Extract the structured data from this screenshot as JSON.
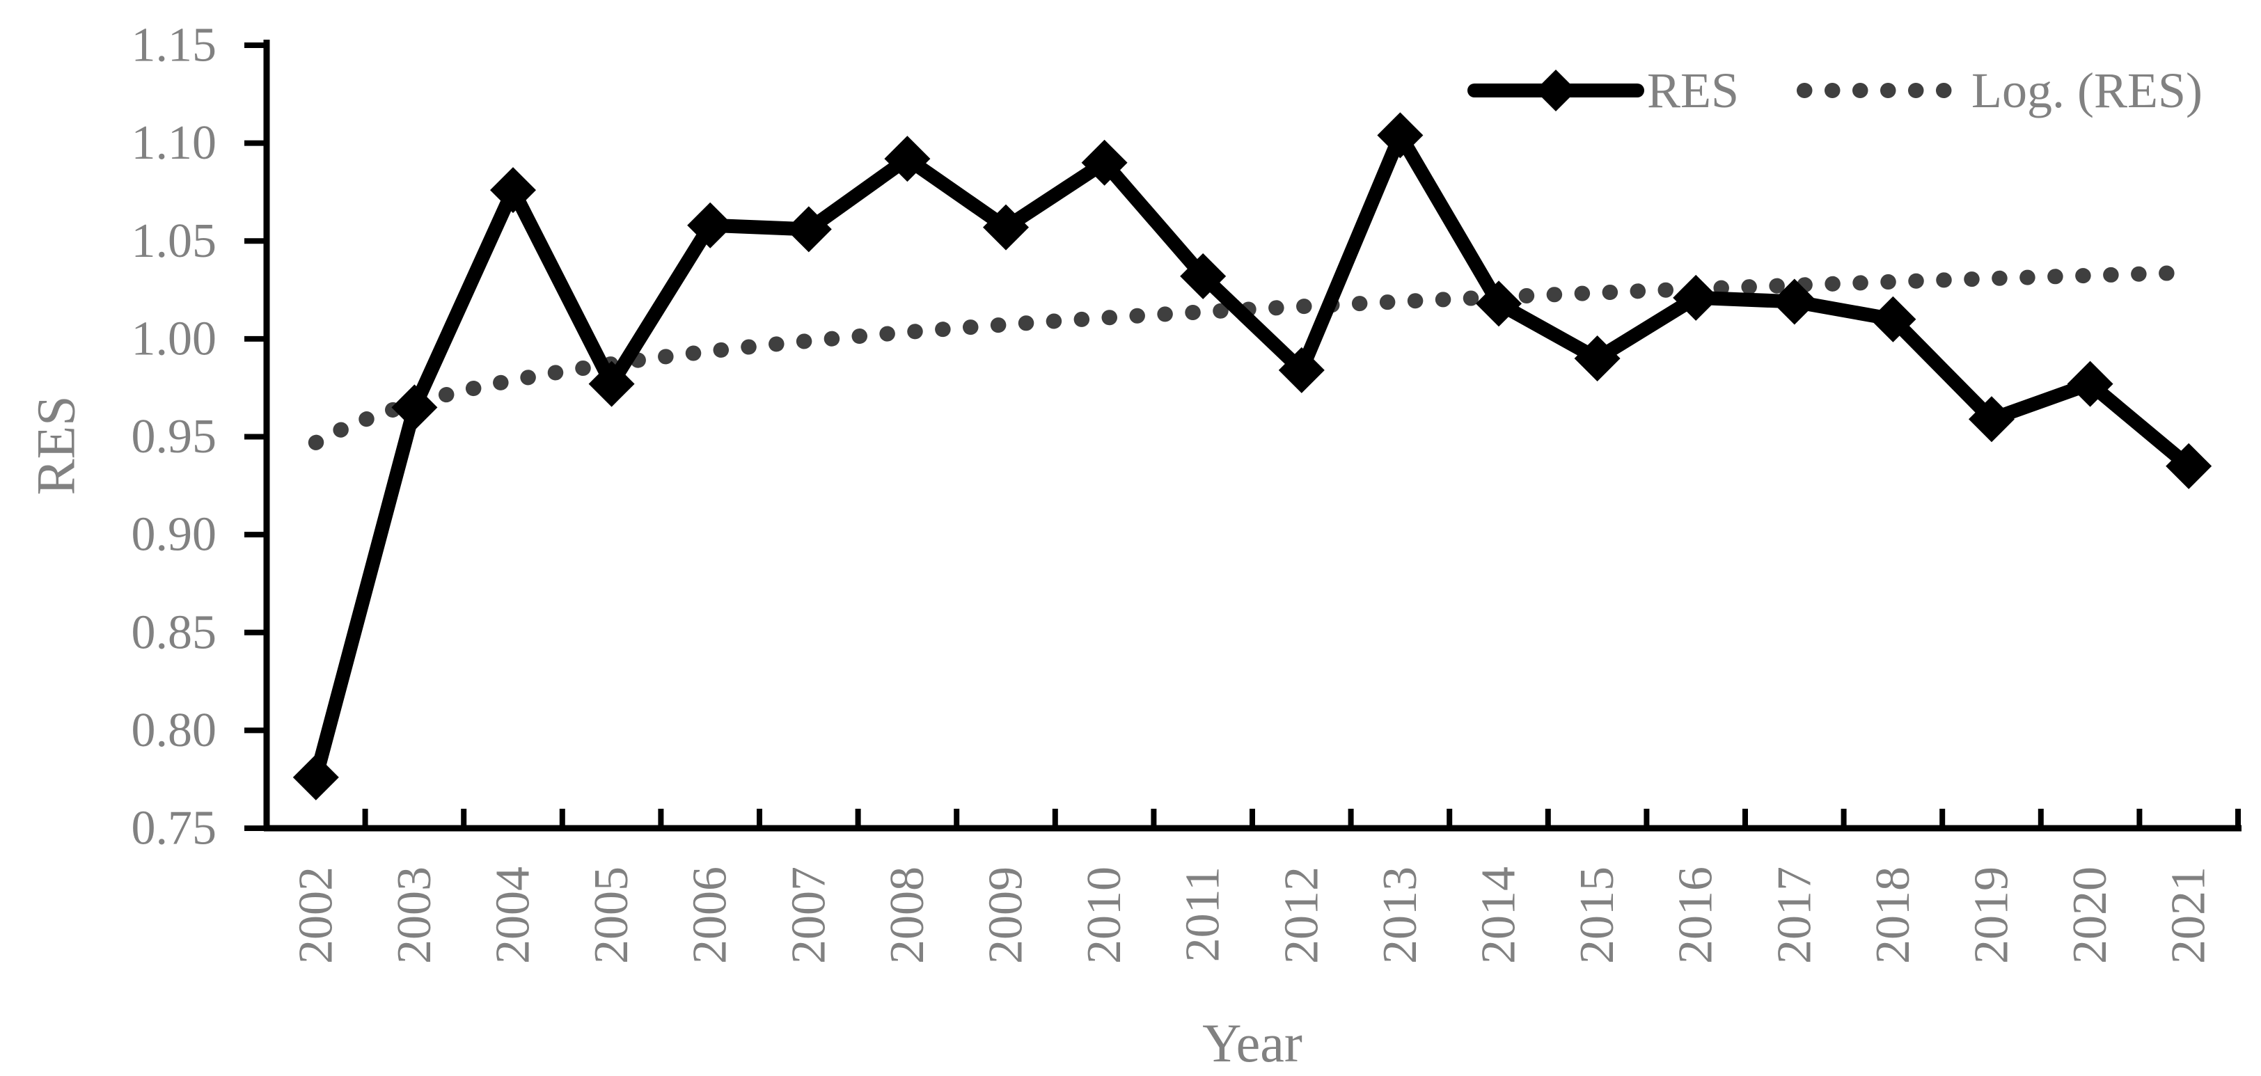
{
  "chart_data": {
    "type": "line",
    "title": "",
    "xlabel": "Year",
    "ylabel": "RES",
    "categories": [
      "2002",
      "2003",
      "2004",
      "2005",
      "2006",
      "2007",
      "2008",
      "2009",
      "2010",
      "2011",
      "2012",
      "2013",
      "2014",
      "2015",
      "2016",
      "2017",
      "2018",
      "2019",
      "2020",
      "2021"
    ],
    "ylim": [
      0.75,
      1.15
    ],
    "ytick_step": 0.05,
    "ytick_labels": [
      "1.15",
      "1.10",
      "1.05",
      "1.00",
      "0.95",
      "0.90",
      "0.85",
      "0.80",
      "0.75"
    ],
    "grid": false,
    "legend_position": "top-right",
    "series": [
      {
        "name": "RES",
        "type": "line",
        "marker": "diamond",
        "line_style": "solid",
        "values": [
          0.776,
          0.965,
          1.076,
          0.977,
          1.058,
          1.056,
          1.092,
          1.057,
          1.09,
          1.032,
          0.984,
          1.104,
          1.018,
          0.99,
          1.021,
          1.019,
          1.01,
          0.959,
          0.977,
          0.935
        ]
      },
      {
        "name": "Log. (RES)",
        "type": "logarithmic-trendline",
        "line_style": "dotted",
        "fit": {
          "a": 0.029,
          "b": 0.947,
          "formula": "y = b + a*ln(t), t = year index 1..20"
        },
        "values": [
          0.947,
          0.967,
          0.979,
          0.987,
          0.994,
          0.999,
          1.003,
          1.007,
          1.011,
          1.014,
          1.017,
          1.019,
          1.021,
          1.024,
          1.026,
          1.027,
          1.029,
          1.031,
          1.032,
          1.034
        ]
      }
    ],
    "colors": {
      "res_line": "#000000",
      "trendline_dots": "#3f3f3f",
      "axis": "#000000",
      "labels_gray": "#818181"
    }
  }
}
